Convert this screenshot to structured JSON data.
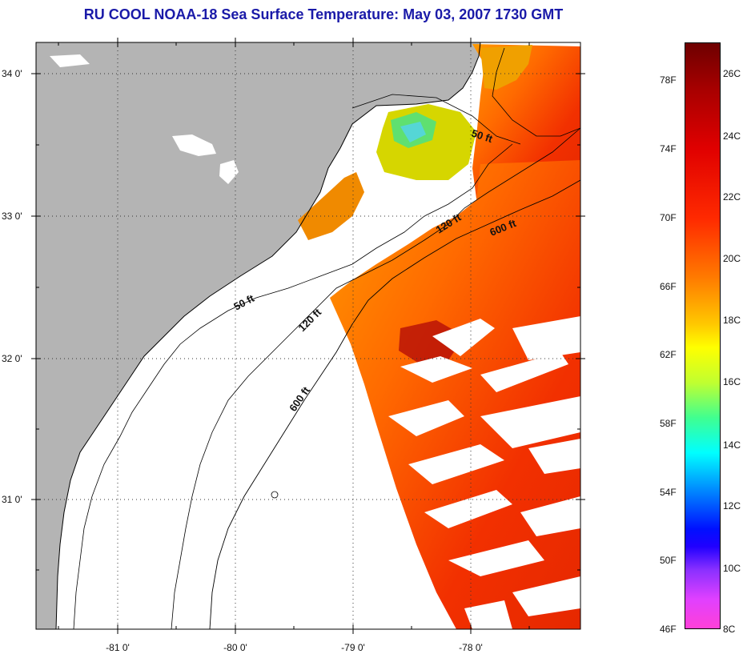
{
  "title": "RU COOL  NOAA-18  Sea Surface Temperature:  May 03, 2007 1730 GMT",
  "map": {
    "lat_ticks": [
      "34 0'",
      "33 0'",
      "32 0'",
      "31 0'"
    ],
    "lon_ticks": [
      "-81 0'",
      "-80 0'",
      "-79 0'",
      "-78 0'"
    ],
    "depth_contours": [
      "50 ft",
      "50 ft",
      "120 ft",
      "120 ft",
      "600 ft",
      "600 ft"
    ],
    "colors": {
      "land": "#b4b4b4",
      "ocean_no_data": "#ffffff",
      "coastline": "#000000"
    }
  },
  "colorbar": {
    "fahrenheit": [
      "78F",
      "74F",
      "70F",
      "66F",
      "62F",
      "58F",
      "54F",
      "50F",
      "46F"
    ],
    "celsius": [
      "26C",
      "24C",
      "22C",
      "20C",
      "18C",
      "16C",
      "14C",
      "12C",
      "10C",
      "8C"
    ],
    "range_c": [
      8,
      27
    ]
  }
}
